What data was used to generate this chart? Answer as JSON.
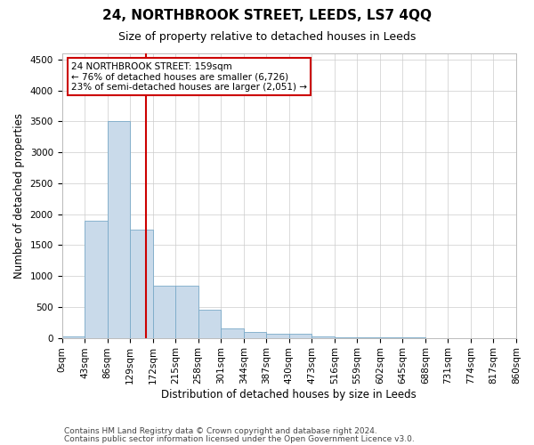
{
  "title": "24, NORTHBROOK STREET, LEEDS, LS7 4QQ",
  "subtitle": "Size of property relative to detached houses in Leeds",
  "xlabel": "Distribution of detached houses by size in Leeds",
  "ylabel": "Number of detached properties",
  "annotation_line1": "24 NORTHBROOK STREET: 159sqm",
  "annotation_line2": "← 76% of detached houses are smaller (6,726)",
  "annotation_line3": "23% of semi-detached houses are larger (2,051) →",
  "property_size": 159,
  "bin_edges": [
    0,
    43,
    86,
    129,
    172,
    215,
    258,
    301,
    344,
    387,
    430,
    473,
    516,
    559,
    602,
    645,
    688,
    731,
    774,
    817,
    860
  ],
  "bar_heights": [
    25,
    1900,
    3500,
    1750,
    850,
    850,
    450,
    150,
    100,
    60,
    60,
    30,
    10,
    5,
    3,
    2,
    1,
    1,
    0,
    0
  ],
  "bar_color": "#c9daea",
  "bar_edgecolor": "#7aaac8",
  "vline_x": 159,
  "vline_color": "#cc0000",
  "annotation_box_edgecolor": "#cc0000",
  "ylim": [
    0,
    4600
  ],
  "yticks": [
    0,
    500,
    1000,
    1500,
    2000,
    2500,
    3000,
    3500,
    4000,
    4500
  ],
  "footnote1": "Contains HM Land Registry data © Crown copyright and database right 2024.",
  "footnote2": "Contains public sector information licensed under the Open Government Licence v3.0.",
  "background_color": "#ffffff",
  "grid_color": "#cccccc",
  "title_fontsize": 11,
  "subtitle_fontsize": 9,
  "axis_label_fontsize": 8.5,
  "tick_fontsize": 7.5,
  "annotation_fontsize": 7.5,
  "footnote_fontsize": 6.5
}
